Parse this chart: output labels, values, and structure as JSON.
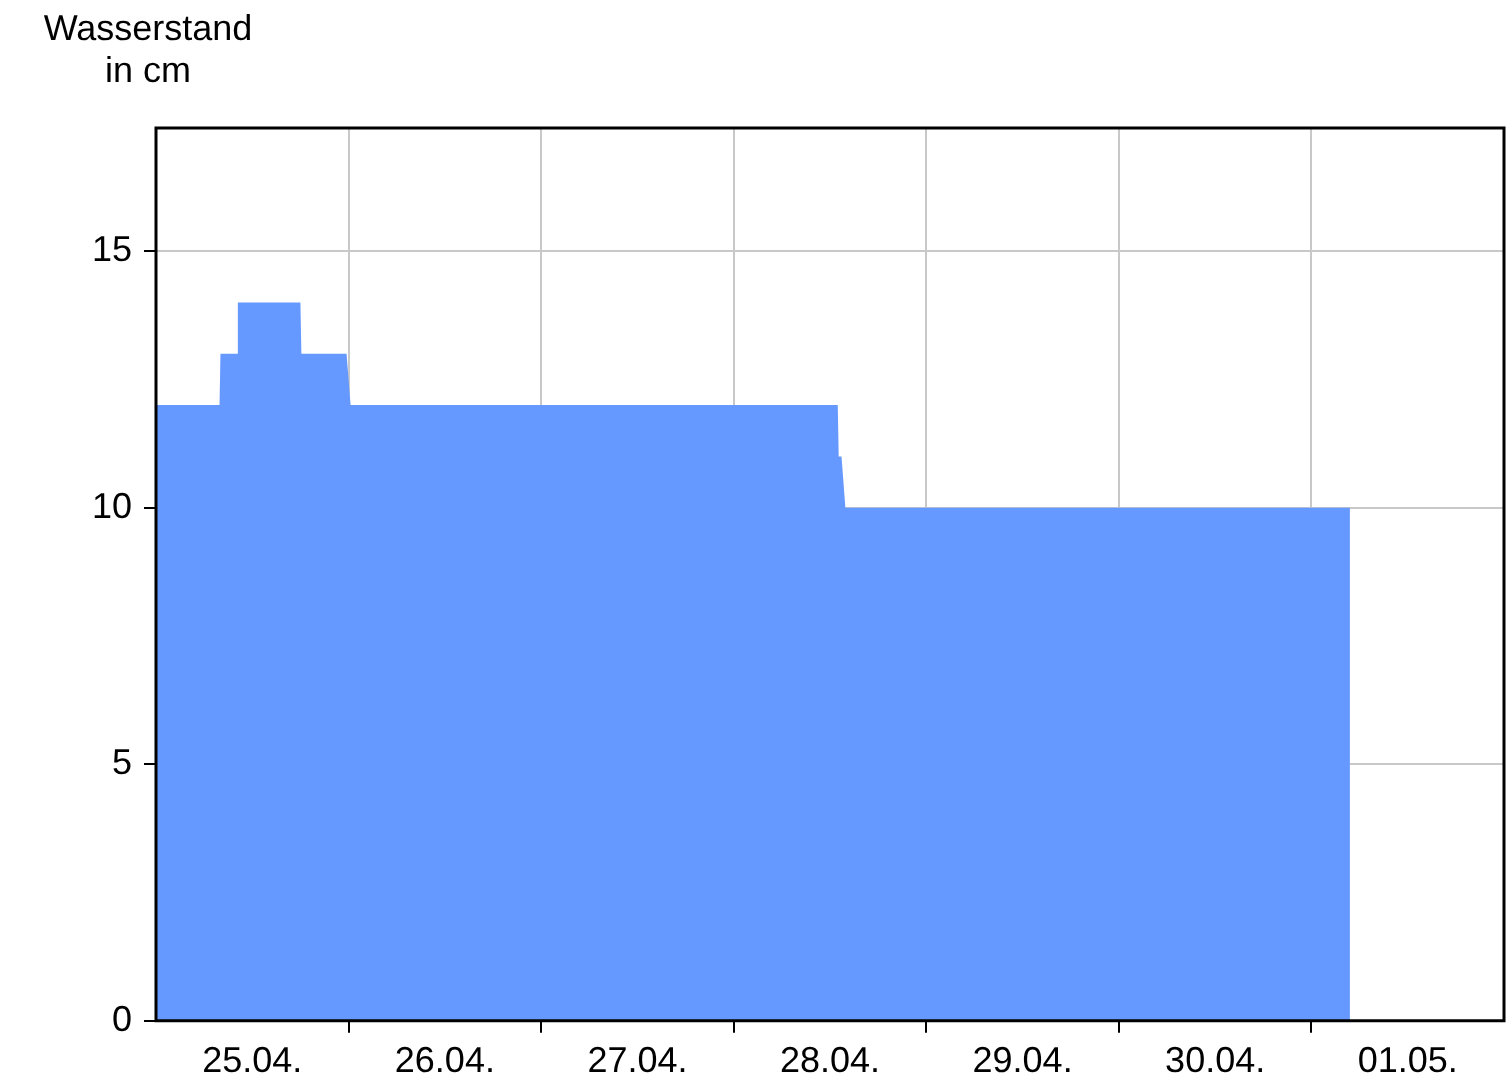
{
  "chart_data": {
    "type": "area",
    "ylabel": "Wasserstand in cm",
    "x": [
      "--04-25T00:00",
      "--04-25T07:55",
      "--04-25T08:02",
      "--04-25T10:05",
      "--04-25T10:12",
      "--04-25T18:00",
      "--04-25T18:07",
      "--04-25T23:45",
      "--04-26T00:15",
      "--04-28T12:58",
      "--04-28T13:05",
      "--04-28T13:26",
      "--04-28T13:55",
      "--05-01T04:48"
    ],
    "series": [
      {
        "color": "#6699ff",
        "values": [
          12,
          12,
          13,
          13,
          14,
          14,
          13,
          13,
          12,
          12,
          11,
          11,
          10,
          10
        ]
      }
    ],
    "xlim": [
      "--04-25T00:00",
      "--05-02T00:00"
    ],
    "xticks": [
      {
        "value": "--04-25T12:00",
        "label": "25.04."
      },
      {
        "value": "--04-26T00:00",
        "label": null
      },
      {
        "value": "--04-26T12:00",
        "label": "26.04."
      },
      {
        "value": "--04-27T00:00",
        "label": null
      },
      {
        "value": "--04-27T12:00",
        "label": "27.04."
      },
      {
        "value": "--04-28T00:00",
        "label": null
      },
      {
        "value": "--04-28T12:00",
        "label": "28.04."
      },
      {
        "value": "--04-29T00:00",
        "label": null
      },
      {
        "value": "--04-29T12:00",
        "label": "29.04."
      },
      {
        "value": "--04-30T00:00",
        "label": null
      },
      {
        "value": "--04-30T12:00",
        "label": "30.04."
      },
      {
        "value": "--05-01T00:00",
        "label": null
      },
      {
        "value": "--05-01T12:00",
        "label": "01.05."
      }
    ],
    "ylim": [
      0,
      17.4
    ],
    "yticks": [
      0,
      5,
      10,
      15
    ],
    "grid": true,
    "legend": false
  }
}
